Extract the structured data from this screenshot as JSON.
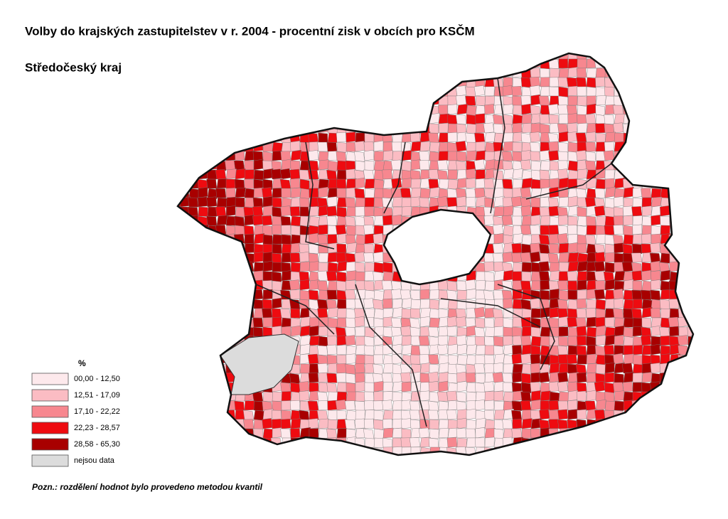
{
  "header": {
    "title": "Volby do krajských zastupitelstev v r. 2004 - procentní zisk v obcích pro KSČM",
    "subtitle": "Středočeský kraj"
  },
  "legend": {
    "title": "%",
    "items": [
      {
        "label": "00,00 - 12,50",
        "color": "#fde9ec"
      },
      {
        "label": "12,51 - 17,09",
        "color": "#fbbcc3"
      },
      {
        "label": "17,10 - 22,22",
        "color": "#f7878f"
      },
      {
        "label": "22,23 - 28,57",
        "color": "#ee0b10"
      },
      {
        "label": "28,58 - 65,30",
        "color": "#a80000"
      },
      {
        "label": "nejsou data",
        "color": "#dcdcdc"
      }
    ]
  },
  "note": "Pozn.: rozdělení hodnot bylo provedeno metodou kvantil"
}
